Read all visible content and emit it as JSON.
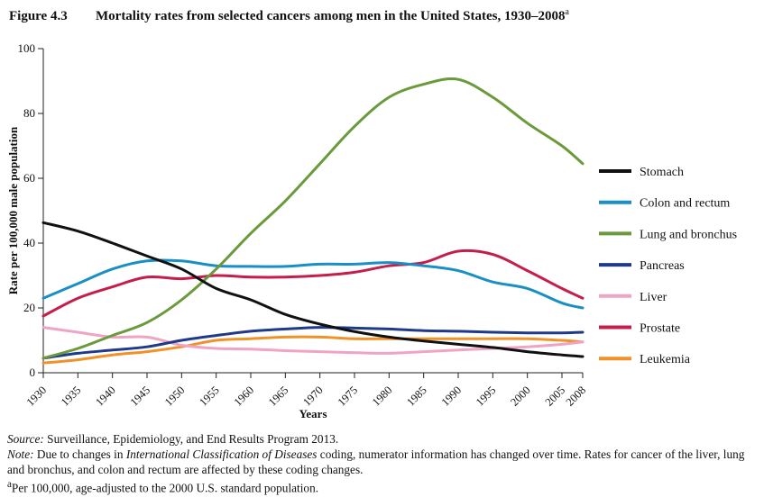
{
  "figure": {
    "number": "Figure 4.3",
    "title": "Mortality rates from selected cancers among men in the United States, 1930–2008",
    "title_superscript": "a"
  },
  "chart_data": {
    "type": "line",
    "xlabel": "Years",
    "ylabel": "Rate per 100,000 male population",
    "xlim": [
      1930,
      2008
    ],
    "ylim": [
      0,
      100
    ],
    "x_ticks": [
      "1930",
      "1935",
      "1940",
      "1945",
      "1950",
      "1955",
      "1960",
      "1965",
      "1970",
      "1975",
      "1980",
      "1985",
      "1990",
      "1995",
      "2000",
      "2005",
      "2008"
    ],
    "y_ticks": [
      "0",
      "20",
      "40",
      "60",
      "80",
      "100"
    ],
    "grid": false,
    "legend_position": "right",
    "x": [
      1930,
      1935,
      1940,
      1945,
      1950,
      1955,
      1960,
      1965,
      1970,
      1975,
      1980,
      1985,
      1990,
      1995,
      2000,
      2005,
      2008
    ],
    "series": [
      {
        "name": "Stomach",
        "color": "#111111",
        "values": [
          46.3,
          43.7,
          40,
          36,
          32,
          26,
          22.5,
          18,
          15,
          12.7,
          11,
          9.8,
          8.8,
          7.8,
          6.5,
          5.5,
          5
        ]
      },
      {
        "name": "Colon and rectum",
        "color": "#1a8fc6",
        "values": [
          23,
          27.5,
          32,
          34.5,
          34.5,
          33,
          32.8,
          32.8,
          33.5,
          33.5,
          34,
          33,
          31.5,
          28,
          26,
          21.5,
          20
        ]
      },
      {
        "name": "Lung and bronchus",
        "color": "#6a9a3c",
        "values": [
          4.5,
          7.5,
          11.5,
          15.5,
          22.5,
          32,
          43,
          53,
          64.5,
          76,
          85,
          89,
          90.5,
          85,
          77,
          70,
          64.5
        ]
      },
      {
        "name": "Pancreas",
        "color": "#1f3a8a",
        "values": [
          4.5,
          6,
          7,
          8,
          10,
          11.5,
          12.8,
          13.5,
          14,
          13.8,
          13.5,
          13,
          12.8,
          12.5,
          12.3,
          12.3,
          12.5
        ]
      },
      {
        "name": "Liver",
        "color": "#f0a4c4",
        "values": [
          14,
          12.5,
          11,
          11,
          8.5,
          7.5,
          7.3,
          6.8,
          6.5,
          6.2,
          6,
          6.5,
          7,
          7.5,
          8,
          8.8,
          9.5
        ]
      },
      {
        "name": "Prostate",
        "color": "#c41e4a",
        "values": [
          17.5,
          23,
          26.5,
          29.5,
          29,
          30,
          29.5,
          29.5,
          30,
          31,
          33,
          34,
          37.5,
          36.5,
          31.5,
          26,
          23
        ]
      },
      {
        "name": "Leukemia",
        "color": "#f0922a",
        "values": [
          3,
          4,
          5.5,
          6.5,
          8,
          10,
          10.5,
          11,
          11,
          10.5,
          10.5,
          10.5,
          10.5,
          10.5,
          10.5,
          10,
          9.5
        ]
      }
    ]
  },
  "notes": {
    "source_label": "Source:",
    "source_text": " Surveillance, Epidemiology, and End Results Program 2013.",
    "note_label": "Note:",
    "note_text_1": " Due to changes in ",
    "note_italic": "International Classification of Diseases",
    "note_text_2": " coding, numerator information has changed over time. Rates for cancer of the liver, lung and bronchus, and colon and rectum are affected by these coding changes.",
    "footnote_marker": "a",
    "footnote_text": "Per 100,000, age-adjusted to the 2000 U.S. standard population."
  }
}
